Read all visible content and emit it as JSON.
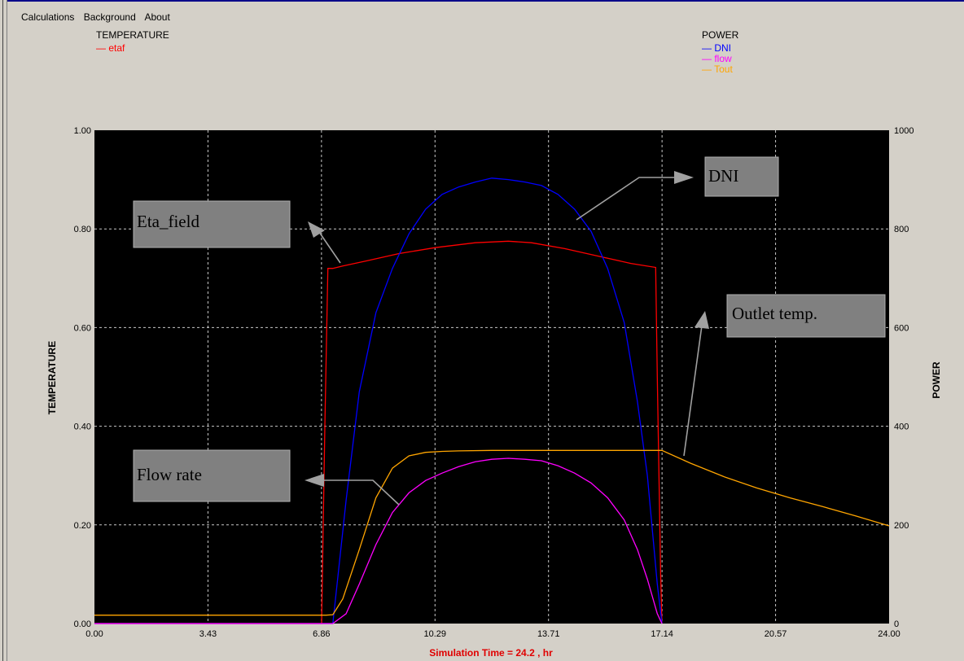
{
  "menu": {
    "items": [
      "Calculations",
      "Background",
      "About"
    ]
  },
  "legend_left": {
    "title": "TEMPERATURE",
    "entries": [
      {
        "label": "etaf",
        "color": "#ff0000"
      }
    ]
  },
  "legend_right": {
    "title": "POWER",
    "entries": [
      {
        "label": "DNI",
        "color": "#0000ff"
      },
      {
        "label": "flow",
        "color": "#ff00ff"
      },
      {
        "label": "Tout",
        "color": "#ffa500"
      }
    ]
  },
  "axes": {
    "left_title": "TEMPERATURE",
    "right_title": "POWER",
    "x_ticks": [
      "0.00",
      "3.43",
      "6.86",
      "10.29",
      "13.71",
      "17.14",
      "20.57",
      "24.00"
    ],
    "y_left_ticks": [
      "0.00",
      "0.20",
      "0.40",
      "0.60",
      "0.80",
      "1.00"
    ],
    "y_right_ticks": [
      "0",
      "200",
      "400",
      "600",
      "800",
      "1000"
    ]
  },
  "simulation_time": "Simulation Time =  24.2 , hr",
  "callouts": {
    "dni": "DNI",
    "eta_field": "Eta_field",
    "outlet_temp": "Outlet temp.",
    "flow_rate": "Flow rate"
  },
  "chart_data": {
    "type": "line",
    "xlabel": "Simulation Time =  24.2 , hr",
    "xlim": [
      0,
      24
    ],
    "y_left": {
      "label": "TEMPERATURE",
      "lim": [
        0,
        1
      ]
    },
    "y_right": {
      "label": "POWER",
      "lim": [
        0,
        1000
      ]
    },
    "grid": true,
    "background": "#000000",
    "series": [
      {
        "name": "etaf",
        "axis": "left",
        "color": "#ff0000",
        "x": [
          0,
          6.86,
          6.96,
          7.05,
          7.2,
          7.5,
          8.2,
          9.2,
          10.29,
          11.5,
          12.5,
          13.2,
          14.2,
          15.2,
          16.2,
          16.95,
          17.0,
          17.1,
          17.14
        ],
        "y": [
          0.0,
          0.0,
          0.4,
          0.72,
          0.72,
          0.725,
          0.735,
          0.75,
          0.762,
          0.772,
          0.775,
          0.772,
          0.76,
          0.745,
          0.73,
          0.722,
          0.5,
          0.1,
          0.0
        ]
      },
      {
        "name": "DNI",
        "axis": "right",
        "color": "#0000ff",
        "x": [
          0,
          7.2,
          7.6,
          8.0,
          8.5,
          9.0,
          9.5,
          10.0,
          10.5,
          11.0,
          11.5,
          12.0,
          12.5,
          13.0,
          13.5,
          14.0,
          14.5,
          15.0,
          15.5,
          16.0,
          16.4,
          16.7,
          17.0,
          17.14
        ],
        "y": [
          0,
          0,
          250,
          470,
          630,
          720,
          790,
          840,
          870,
          885,
          895,
          903,
          900,
          895,
          888,
          870,
          840,
          795,
          720,
          610,
          450,
          300,
          80,
          0
        ]
      },
      {
        "name": "flow",
        "axis": "right",
        "color": "#ff00ff",
        "x": [
          0,
          7.2,
          7.6,
          8.0,
          8.5,
          9.0,
          9.5,
          10.0,
          10.5,
          11.0,
          11.5,
          12.0,
          12.5,
          13.0,
          13.5,
          14.0,
          14.5,
          15.0,
          15.5,
          16.0,
          16.4,
          16.7,
          17.0,
          17.14
        ],
        "y": [
          0,
          0,
          20,
          80,
          160,
          225,
          265,
          290,
          305,
          318,
          328,
          333,
          335,
          333,
          330,
          320,
          305,
          285,
          255,
          210,
          150,
          90,
          20,
          0
        ]
      },
      {
        "name": "Tout",
        "axis": "right",
        "color": "#ffa500",
        "x": [
          0,
          7.0,
          7.2,
          7.5,
          8.0,
          8.5,
          9.0,
          9.5,
          10.0,
          10.5,
          11.0,
          12.0,
          13.0,
          14.0,
          15.0,
          16.0,
          17.0,
          17.14,
          18.0,
          19.0,
          20.0,
          21.0,
          22.0,
          23.0,
          24.0
        ],
        "y": [
          17,
          17,
          18,
          50,
          150,
          255,
          315,
          340,
          347,
          349,
          350,
          351,
          351,
          351,
          351,
          351,
          351,
          351,
          325,
          298,
          275,
          255,
          237,
          218,
          198
        ]
      }
    ]
  }
}
